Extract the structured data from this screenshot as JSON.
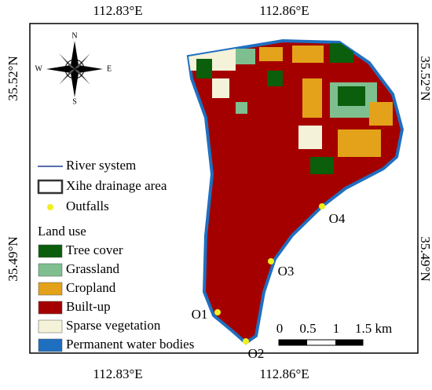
{
  "map": {
    "top_labels": [
      "112.83°E",
      "112.86°E"
    ],
    "bottom_labels": [
      "112.83°E",
      "112.86°E"
    ],
    "left_labels": [
      "35.52°N",
      "35.49°N"
    ],
    "right_labels": [
      "35.52°N",
      "35.49°N"
    ],
    "compass": {
      "n": "N",
      "s": "S",
      "e": "E",
      "w": "W"
    },
    "legend": {
      "river": "River system",
      "drainage": "Xihe drainage area",
      "outfalls": "Outfalls",
      "land_use_title": "Land use",
      "land_use": [
        {
          "name": "Tree cover",
          "color": "#0b5e0b"
        },
        {
          "name": "Grassland",
          "color": "#7fbf8f"
        },
        {
          "name": "Cropland",
          "color": "#e3a21a"
        },
        {
          "name": "Built-up",
          "color": "#a50000"
        },
        {
          "name": "Sparse vegetation",
          "color": "#f4f2d8"
        },
        {
          "name": "Permanent water bodies",
          "color": "#1f6fc0"
        }
      ]
    },
    "outfall_labels": [
      "O1",
      "O2",
      "O3",
      "O4"
    ],
    "scale_bar": [
      "0",
      "0.5",
      "1",
      "1.5 km"
    ]
  }
}
